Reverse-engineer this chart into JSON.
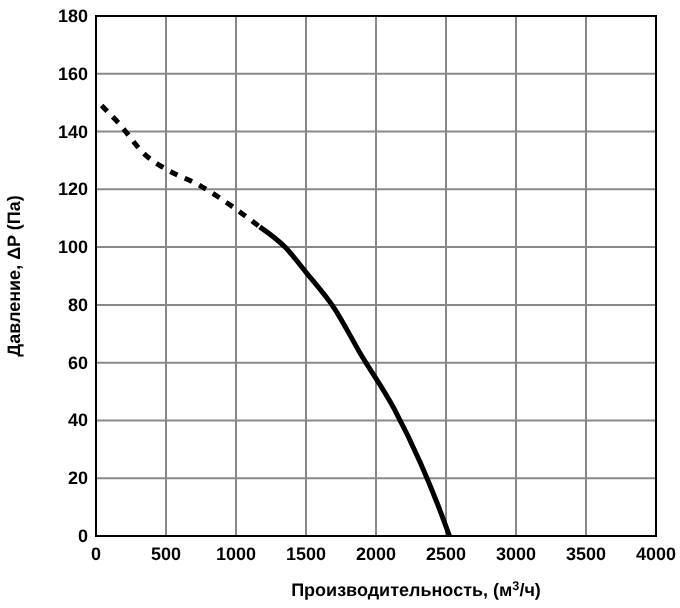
{
  "chart_data": {
    "type": "line",
    "xlabel": "Производительность, (м$^{3}$/ч)",
    "ylabel": "Давление, ΔP (Па)",
    "xlim": [
      0,
      4000
    ],
    "ylim": [
      0,
      180
    ],
    "xticks": [
      0,
      500,
      1000,
      1500,
      2000,
      2500,
      3000,
      3500,
      4000
    ],
    "yticks": [
      0,
      20,
      40,
      60,
      80,
      100,
      120,
      140,
      160,
      180
    ],
    "grid": true,
    "series": [
      {
        "color": "#000000",
        "line_style": "dashed",
        "x": [
          40,
          160,
          350,
          500,
          735,
          975,
          1170
        ],
        "values": [
          149,
          143,
          132,
          127,
          121.5,
          114,
          107
        ]
      },
      {
        "color": "#000000",
        "line_style": "solid",
        "x": [
          1170,
          1350,
          1505,
          1700,
          1890,
          2130,
          2320,
          2440,
          2525
        ],
        "values": [
          107,
          100,
          91,
          79,
          63,
          44,
          25,
          11,
          0
        ]
      }
    ]
  }
}
